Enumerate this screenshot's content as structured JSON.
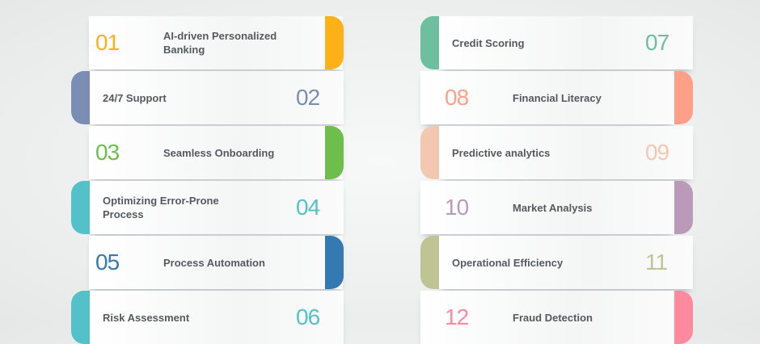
{
  "items": [
    {
      "number": "01",
      "label": "AI-driven Personalized Banking",
      "color": "#FBB117"
    },
    {
      "number": "02",
      "label": "24/7 Support",
      "color": "#7A8DB3"
    },
    {
      "number": "03",
      "label": "Seamless Onboarding",
      "color": "#6DBE4B"
    },
    {
      "number": "04",
      "label": "Optimizing Error-Prone Process",
      "color": "#52C1C8"
    },
    {
      "number": "05",
      "label": "Process Automation",
      "color": "#3579B3"
    },
    {
      "number": "06",
      "label": "Risk Assessment",
      "color": "#52C1C8"
    },
    {
      "number": "07",
      "label": "Credit Scoring",
      "color": "#6DBFA0"
    },
    {
      "number": "08",
      "label": "Financial Literacy",
      "color": "#FF9F87"
    },
    {
      "number": "09",
      "label": "Predictive analytics",
      "color": "#F2C9B0"
    },
    {
      "number": "10",
      "label": "Market Analysis",
      "color": "#B99AB8"
    },
    {
      "number": "11",
      "label": "Operational Efficiency",
      "color": "#BFC494"
    },
    {
      "number": "12",
      "label": "Fraud Detection",
      "color": "#FF8A9E"
    }
  ]
}
